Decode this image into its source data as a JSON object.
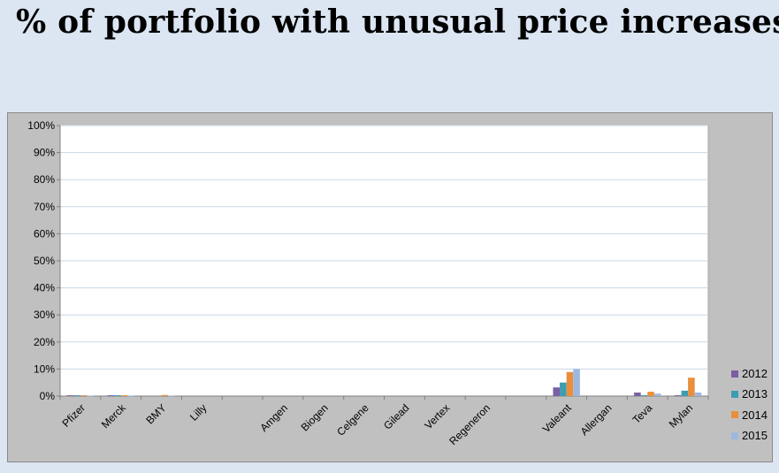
{
  "title": "% of portfolio with unusual price increases",
  "colors": {
    "2012": "#7b5ea3",
    "2013": "#3d9cb2",
    "2014": "#e98f3c",
    "2015": "#9db8e0",
    "plot_background": "#ffffff",
    "frame_background": "#c0c0c0",
    "gridline": "#c9d7ea"
  },
  "chart_data": {
    "type": "bar",
    "title": "",
    "xlabel": "",
    "ylabel": "",
    "ylim": [
      0,
      100
    ],
    "y_unit": "%",
    "y_ticks": [
      "0%",
      "10%",
      "20%",
      "30%",
      "40%",
      "50%",
      "60%",
      "70%",
      "80%",
      "90%",
      "100%"
    ],
    "grid": true,
    "legend_position": "right",
    "categories": [
      "Pfizer",
      "Merck",
      "BMY",
      "Lilly",
      "",
      "Amgen",
      "Biogen",
      "Celgene",
      "Gilead",
      "Vertex",
      "Regeneron",
      "",
      "Valeant",
      "Allergan",
      "Teva",
      "Mylan"
    ],
    "series": [
      {
        "name": "2012",
        "values": [
          0.3,
          0.3,
          0,
          0,
          0,
          0,
          0,
          0,
          0,
          0,
          0,
          0,
          3.2,
          0,
          1.3,
          0.3
        ]
      },
      {
        "name": "2013",
        "values": [
          0.3,
          0.3,
          0,
          0,
          0,
          0,
          0,
          0,
          0,
          0,
          0,
          0,
          5.0,
          0,
          0.3,
          2.0
        ]
      },
      {
        "name": "2014",
        "values": [
          0.3,
          0.3,
          0.4,
          0,
          0,
          0,
          0,
          0,
          0,
          0,
          0,
          0,
          8.9,
          0,
          1.6,
          6.8
        ]
      },
      {
        "name": "2015",
        "values": [
          0.2,
          0.2,
          0.2,
          0,
          0,
          0,
          0,
          0,
          0,
          0,
          0,
          0,
          10.0,
          0,
          0.9,
          1.3
        ]
      }
    ]
  }
}
